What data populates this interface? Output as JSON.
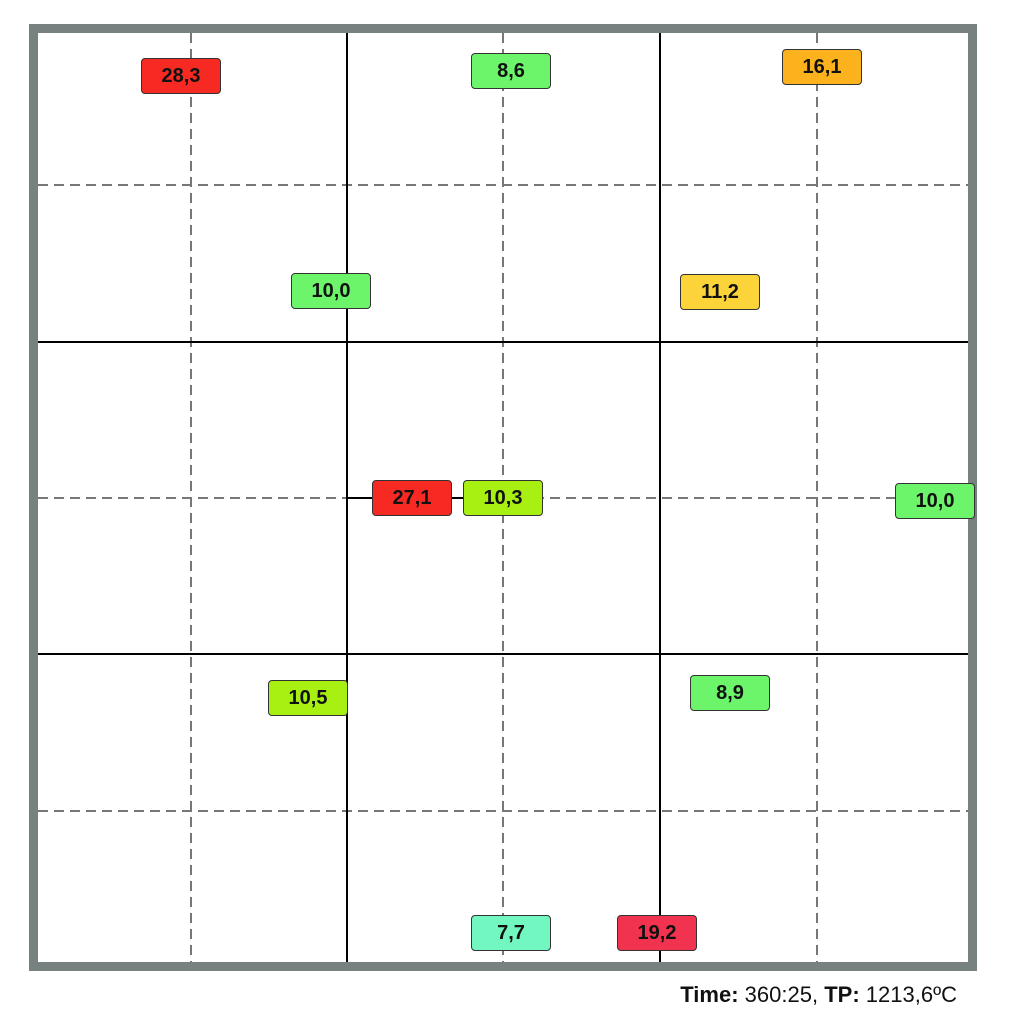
{
  "labels": [
    {
      "text": "28,3",
      "color": "#f62a22"
    },
    {
      "text": "8,6",
      "color": "#6cf56a"
    },
    {
      "text": "16,1",
      "color": "#fbb21d"
    },
    {
      "text": "10,0",
      "color": "#6cf56a"
    },
    {
      "text": "11,2",
      "color": "#fcd43a"
    },
    {
      "text": "27,1",
      "color": "#f62a22"
    },
    {
      "text": "10,3",
      "color": "#a8ef12"
    },
    {
      "text": "10,0",
      "color": "#6cf56a"
    },
    {
      "text": "10,5",
      "color": "#a8ef12"
    },
    {
      "text": "8,9",
      "color": "#6cf56a"
    },
    {
      "text": "7,7",
      "color": "#72f7c0"
    },
    {
      "text": "19,2",
      "color": "#f2334f"
    }
  ],
  "footer": {
    "time_label": "Time:",
    "time_value": "360:25,",
    "tp_label": "TP:",
    "tp_value": "1213,6ºC"
  }
}
